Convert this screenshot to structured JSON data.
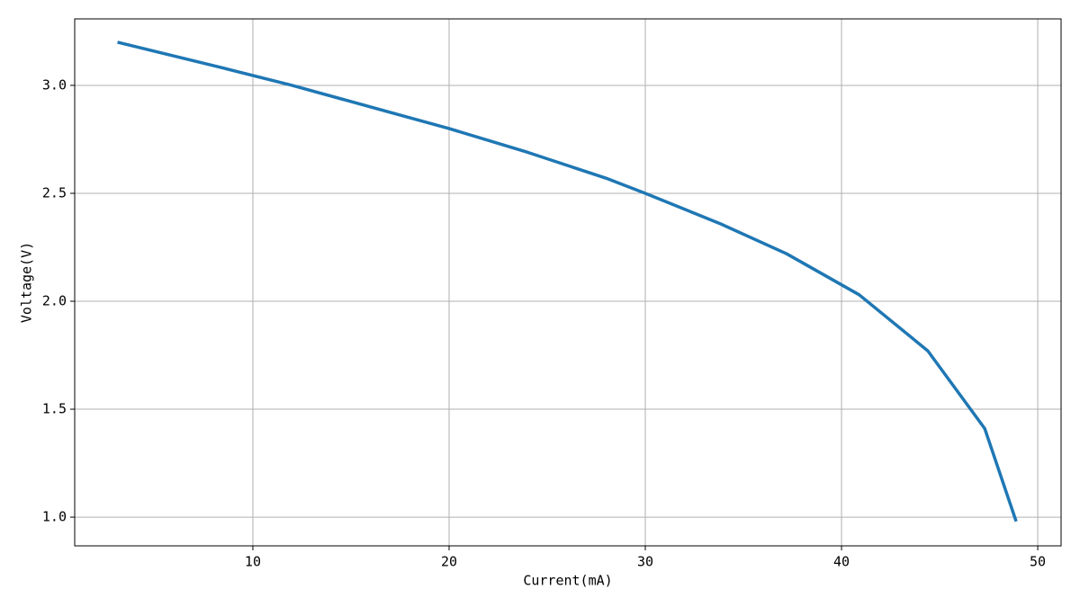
{
  "chart_data": {
    "type": "line",
    "x_label": "Current(mA)",
    "y_label": "Voltage(V)",
    "x": [
      3.1,
      8.5,
      12,
      16,
      20,
      24,
      28,
      30,
      33.8,
      37.2,
      40.9,
      44.4,
      47.3,
      48.9
    ],
    "series": [
      {
        "name": "Voltage",
        "color": "#1f77b4",
        "values": [
          3.2,
          3.08,
          3.0,
          2.9,
          2.8,
          2.69,
          2.57,
          2.5,
          2.36,
          2.22,
          2.03,
          1.77,
          1.41,
          0.98
        ]
      }
    ],
    "xlim": [
      0.92,
      51.19
    ],
    "ylim": [
      0.867,
      3.308
    ],
    "xticks": [
      10,
      20,
      30,
      40,
      50
    ],
    "yticks": [
      {
        "value": 1.0,
        "label": "1.0"
      },
      {
        "value": 1.5,
        "label": "1.5"
      },
      {
        "value": 2.0,
        "label": "2.0"
      },
      {
        "value": 2.5,
        "label": "2.5"
      },
      {
        "value": 3.0,
        "label": "3.0"
      }
    ],
    "grid": true
  }
}
